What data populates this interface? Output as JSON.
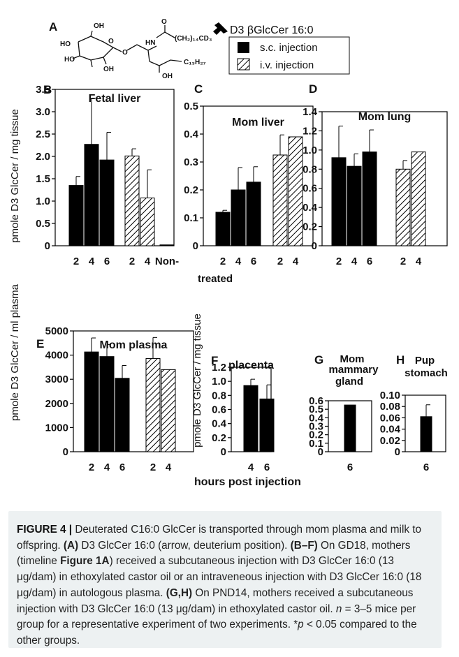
{
  "structure": {
    "panel_letter": "A",
    "compound_label": "D3 βGlcCer 16:0",
    "legend": [
      {
        "label": "s.c. injection",
        "pattern": "solid"
      },
      {
        "label": "i.v. injection",
        "pattern": "hatched"
      }
    ],
    "atoms": {
      "oh_sugar_top": "OH",
      "ho_sugar_left": "HO",
      "ho_sugar_bottom": "HO",
      "oh_sugar_bottom": "OH",
      "o_ring": "O",
      "o_link": "O",
      "hn": "HN",
      "o_carbonyl": "O",
      "chain_top": "(CH₂)₁₄CD₃",
      "chain_right": "C₁₃H₂₇",
      "oh_sphingo": "OH"
    }
  },
  "common": {
    "ylabel_top": "pmole D3 GlcCer / mg tissue",
    "ylabel_plasma": "pmole D3 GlcCer / ml plasma",
    "ylabel_bottom": "pmole D3 GlcCer / mg tissue",
    "xlabel": "hours post injection",
    "solid_color": "#000000",
    "hatch_color": "#000000"
  },
  "chart_data": [
    {
      "id": "B",
      "letter": "B",
      "type": "bar",
      "title": "Fetal liver",
      "bars": [
        {
          "x": "2",
          "value": 1.35,
          "err": 0.2,
          "pattern": "solid",
          "group": 0
        },
        {
          "x": "4",
          "value": 2.27,
          "err": 1.03,
          "pattern": "solid",
          "group": 0
        },
        {
          "x": "6",
          "value": 1.92,
          "err": 0.62,
          "pattern": "solid",
          "group": 0
        },
        {
          "x": "2",
          "value": 2.01,
          "err": 0.16,
          "pattern": "hatched",
          "group": 1
        },
        {
          "x": "4",
          "value": 1.07,
          "err": 0.63,
          "pattern": "hatched",
          "group": 1
        },
        {
          "x": "Non-treated",
          "value": 0.02,
          "err": 0,
          "pattern": "solid",
          "group": 2
        }
      ],
      "yticks": [
        "0",
        "0.5",
        "1.0",
        "1.5",
        "2.0",
        "2.5",
        "3.0",
        "3.5"
      ],
      "ylim": [
        0,
        3.5
      ],
      "annotation": "*",
      "extra_label": "treated"
    },
    {
      "id": "C",
      "letter": "C",
      "type": "bar",
      "title": "Mom liver",
      "bars": [
        {
          "x": "2",
          "value": 0.12,
          "err": 0.007,
          "pattern": "solid",
          "group": 0
        },
        {
          "x": "4",
          "value": 0.2,
          "err": 0.08,
          "pattern": "solid",
          "group": 0
        },
        {
          "x": "6",
          "value": 0.228,
          "err": 0.055,
          "pattern": "solid",
          "group": 0
        },
        {
          "x": "2",
          "value": 0.325,
          "err": 0.072,
          "pattern": "hatched",
          "group": 1
        },
        {
          "x": "4",
          "value": 0.39,
          "err": 0,
          "pattern": "hatched",
          "group": 1
        }
      ],
      "yticks": [
        "0",
        "0.1",
        "0.2",
        "0.3",
        "0.4",
        "0.5"
      ],
      "ylim": [
        0,
        0.5
      ]
    },
    {
      "id": "D",
      "letter": "D",
      "type": "bar",
      "title": "Mom lung",
      "bars": [
        {
          "x": "2",
          "value": 0.92,
          "err": 0.33,
          "pattern": "solid",
          "group": 0
        },
        {
          "x": "4",
          "value": 0.83,
          "err": 0.13,
          "pattern": "solid",
          "group": 0
        },
        {
          "x": "6",
          "value": 0.98,
          "err": 0.23,
          "pattern": "solid",
          "group": 0
        },
        {
          "x": "2",
          "value": 0.8,
          "err": 0.09,
          "pattern": "hatched",
          "group": 1
        },
        {
          "x": "4",
          "value": 0.98,
          "err": 0,
          "pattern": "hatched",
          "group": 1
        }
      ],
      "yticks": [
        "0",
        "0.2",
        "0.4",
        "0.6",
        "0.8",
        "1.0",
        "1.2",
        "1.4"
      ],
      "ylim": [
        0,
        1.4
      ]
    },
    {
      "id": "E",
      "letter": "E",
      "type": "bar",
      "title": "Mom plasma",
      "bars": [
        {
          "x": "2",
          "value": 4130,
          "err": 580,
          "pattern": "solid",
          "group": 0
        },
        {
          "x": "4",
          "value": 3940,
          "err": 500,
          "pattern": "solid",
          "group": 0
        },
        {
          "x": "6",
          "value": 3040,
          "err": 530,
          "pattern": "solid",
          "group": 0
        },
        {
          "x": "2",
          "value": 3860,
          "err": 870,
          "pattern": "hatched",
          "group": 1
        },
        {
          "x": "4",
          "value": 3400,
          "err": 0,
          "pattern": "hatched",
          "group": 1
        }
      ],
      "yticks": [
        "0",
        "1000",
        "2000",
        "3000",
        "4000",
        "5000"
      ],
      "ylim": [
        0,
        5000
      ]
    },
    {
      "id": "F",
      "letter": "F",
      "type": "bar",
      "title": "placenta",
      "bars": [
        {
          "x": "4",
          "value": 0.94,
          "err": 0.09,
          "pattern": "solid",
          "group": 0
        },
        {
          "x": "6",
          "value": 0.75,
          "err": 0.2,
          "pattern": "solid",
          "group": 0
        }
      ],
      "yticks": [
        "0",
        "0.2",
        "0.4",
        "0.6",
        "0.8",
        "1.0",
        "1.2"
      ],
      "ylim": [
        0,
        1.2
      ]
    },
    {
      "id": "G",
      "letter": "G",
      "type": "bar",
      "title": "Mom mammary gland",
      "bars": [
        {
          "x": "6",
          "value": 0.55,
          "err": 0,
          "pattern": "solid",
          "group": 0
        }
      ],
      "yticks": [
        "0",
        "0.1",
        "0.2",
        "0.3",
        "0.4",
        "0.5",
        "0.6"
      ],
      "ylim": [
        0,
        0.6
      ]
    },
    {
      "id": "H",
      "letter": "H",
      "type": "bar",
      "title": "Pup stomach",
      "bars": [
        {
          "x": "6",
          "value": 0.062,
          "err": 0.021,
          "pattern": "solid",
          "group": 0
        }
      ],
      "yticks": [
        "0",
        "0.02",
        "0.04",
        "0.06",
        "0.08",
        "0.10"
      ],
      "ylim": [
        0,
        0.1
      ]
    }
  ],
  "caption": {
    "label": "FIGURE 4 |",
    "s1": "Deuterated C16:0 GlcCer is transported through mom plasma and milk to offspring.",
    "refA": "(A)",
    "s2": "D3 GlcCer 16:0 (arrow, deuterium position).",
    "refBF": "(B–F)",
    "s3": "On GD18, mothers (timeline",
    "refFig": "Figure 1A",
    "s4": ") received a subcutaneous injection with D3 GlcCer 16:0 (13 μg/dam) in ethoxylated castor oil or an intraveneous injection with D3 GlcCer 16:0 (18 μg/dam) in autologous plasma.",
    "refGH": "(G,H)",
    "s5": "On PND14, mothers received a subcutaneous injection with D3 GlcCer 16:0 (13 μg/dam) in ethoxylated castor oil.",
    "n_sym": "n",
    "s6": "= 3–5 mice per group for a representative experiment of two experiments. *",
    "p_sym": "p",
    "s7": "< 0.05 compared to the other groups."
  }
}
